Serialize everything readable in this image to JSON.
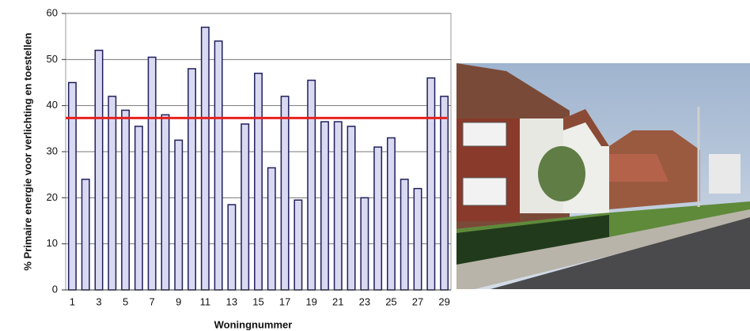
{
  "chart_data": {
    "type": "bar",
    "y_label": "% Primaire energie voor verlichting en toestellen",
    "x_label": "Woningnummer",
    "categories": [
      1,
      null,
      3,
      null,
      5,
      null,
      7,
      null,
      9,
      null,
      11,
      null,
      13,
      null,
      15,
      null,
      17,
      null,
      19,
      null,
      21,
      null,
      23,
      null,
      25,
      null,
      27,
      null,
      29
    ],
    "values": [
      45,
      24,
      52,
      42,
      39,
      35.5,
      50.5,
      38,
      32.5,
      48,
      57,
      54,
      18.5,
      36,
      47,
      26.5,
      42,
      19.5,
      45.5,
      36.5,
      36.5,
      35.5,
      20,
      31,
      33,
      24,
      22,
      46,
      42
    ],
    "color": "#d9d9f2",
    "edge_color": "#1f1f5c",
    "ylim": [
      0,
      60
    ],
    "yticks": [
      0,
      10,
      20,
      30,
      40,
      50,
      60
    ],
    "grid": true,
    "reference_line": {
      "value": 37.3,
      "color": "#e8201c"
    }
  }
}
